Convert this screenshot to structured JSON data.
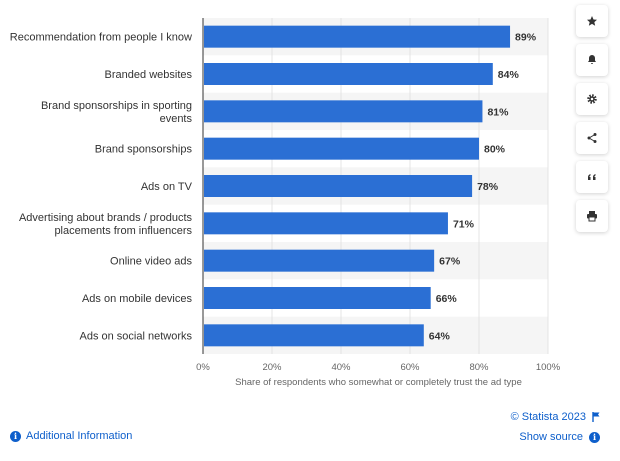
{
  "chart_data": {
    "type": "bar",
    "orientation": "horizontal",
    "categories": [
      [
        "Recommendation from people I know"
      ],
      [
        "Branded websites"
      ],
      [
        "Brand sponsorships in sporting",
        "events"
      ],
      [
        "Brand sponsorships"
      ],
      [
        "Ads on TV"
      ],
      [
        "Advertising about brands / products",
        "placements from influencers"
      ],
      [
        "Online video ads"
      ],
      [
        "Ads on mobile devices"
      ],
      [
        "Ads on social networks"
      ]
    ],
    "values": [
      89,
      84,
      81,
      80,
      78,
      71,
      67,
      66,
      64
    ],
    "value_labels": [
      "89%",
      "84%",
      "81%",
      "80%",
      "78%",
      "71%",
      "67%",
      "66%",
      "64%"
    ],
    "xlim": [
      0,
      100
    ],
    "xticks": [
      "0%",
      "20%",
      "40%",
      "60%",
      "80%",
      "100%"
    ],
    "xlabel": "Share of respondents who somewhat or completely trust the ad type",
    "bar_color": "#2b6fd4",
    "alt_row_color": "#f5f5f5",
    "grid": true
  },
  "toolbar": {
    "icons": [
      "star-icon",
      "bell-icon",
      "gear-icon",
      "share-icon",
      "quote-icon",
      "print-icon"
    ]
  },
  "footer": {
    "additional_info": "Additional Information",
    "copyright": "© Statista 2023",
    "show_source": "Show source"
  },
  "colors": {
    "link": "#0e5fcb"
  }
}
